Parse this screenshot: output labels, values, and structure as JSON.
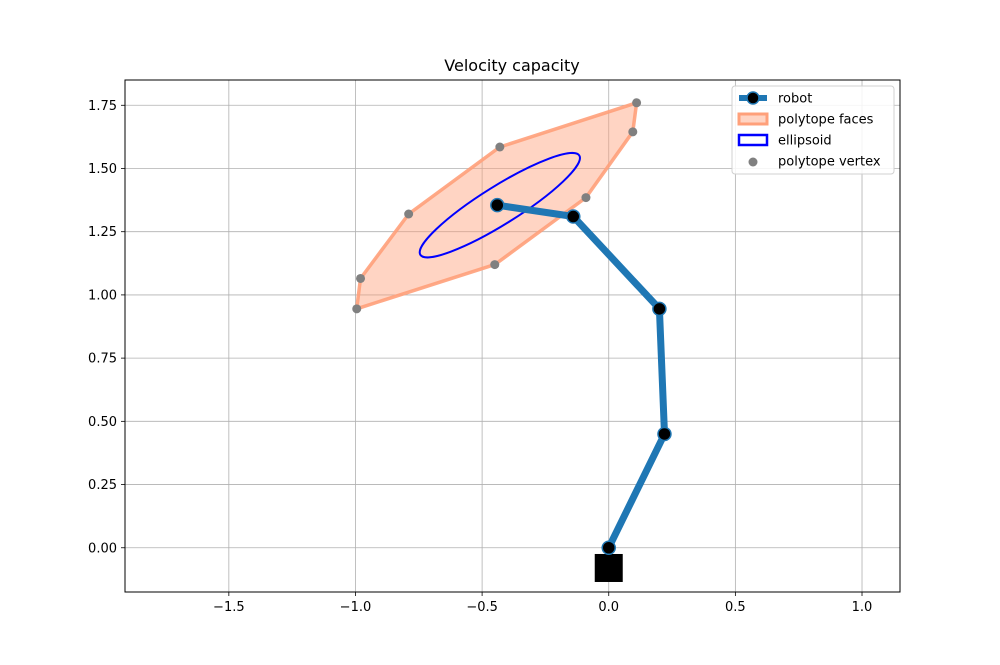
{
  "chart_data": {
    "type": "line",
    "title": "Velocity capacity",
    "xlabel": "",
    "ylabel": "",
    "xlim": [
      -1.91,
      1.15
    ],
    "ylim": [
      -0.175,
      1.85
    ],
    "grid": true,
    "legend_position": "top-right",
    "x_ticks": [
      -1.5,
      -1.0,
      -0.5,
      0.0,
      0.5,
      1.0
    ],
    "x_tick_labels": [
      "−1.5",
      "−1.0",
      "−0.5",
      "0.0",
      "0.5",
      "1.0"
    ],
    "y_ticks": [
      0.0,
      0.25,
      0.5,
      0.75,
      1.0,
      1.25,
      1.5,
      1.75
    ],
    "y_tick_labels": [
      "0.00",
      "0.25",
      "0.50",
      "0.75",
      "1.00",
      "1.25",
      "1.50",
      "1.75"
    ],
    "legend": [
      {
        "label": "robot",
        "kind": "line-marker",
        "color": "#1f77b4"
      },
      {
        "label": "polytope faces",
        "kind": "patch",
        "color": "#ffa07a"
      },
      {
        "label": "ellipsoid",
        "kind": "patch",
        "color": "#0000ff"
      },
      {
        "label": "polytope vertex",
        "kind": "point",
        "color": "#808080"
      }
    ],
    "series": [
      {
        "name": "robot",
        "color": "#1f77b4",
        "points": [
          [
            0.0,
            0.0
          ],
          [
            0.22,
            0.45
          ],
          [
            0.2,
            0.945
          ],
          [
            -0.14,
            1.31
          ],
          [
            -0.44,
            1.355
          ]
        ]
      },
      {
        "name": "polytope faces",
        "color": "#ffa07a",
        "points": [
          [
            0.11,
            1.76
          ],
          [
            0.095,
            1.645
          ],
          [
            -0.09,
            1.385
          ],
          [
            -0.45,
            1.12
          ],
          [
            -0.995,
            0.945
          ],
          [
            -0.98,
            1.065
          ],
          [
            -0.79,
            1.32
          ],
          [
            -0.43,
            1.585
          ]
        ]
      },
      {
        "name": "polytope vertex",
        "color": "#808080",
        "points": [
          [
            0.11,
            1.76
          ],
          [
            0.095,
            1.645
          ],
          [
            -0.09,
            1.385
          ],
          [
            -0.45,
            1.12
          ],
          [
            -0.995,
            0.945
          ],
          [
            -0.98,
            1.065
          ],
          [
            -0.79,
            1.32
          ],
          [
            -0.43,
            1.585
          ]
        ]
      },
      {
        "name": "ellipsoid",
        "color": "#0000ff",
        "center": [
          -0.43,
          1.355
        ],
        "semi_major": 0.37,
        "semi_minor": 0.075,
        "angle_deg": 32
      }
    ],
    "base": {
      "x": 0.0,
      "y": -0.08,
      "color": "#000000"
    }
  }
}
